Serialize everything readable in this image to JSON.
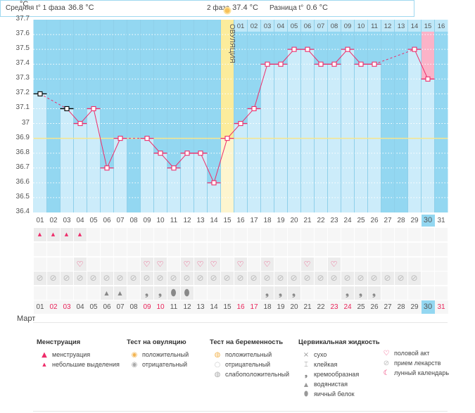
{
  "header": {
    "phase1_label": "Средняя t° 1 фаза",
    "phase1_value": "36.8 °C",
    "phase2_label": "2 фаза",
    "phase2_value": "37.4 °C",
    "diff_label": "Разница t°",
    "diff_value": "0.6 °C"
  },
  "ovulation_label": "ОВУЛЯЦИЯ",
  "month": "Март",
  "colors": {
    "dark": "#93d7f1",
    "light": "#ccecfa",
    "line": "#ee2c6a",
    "coverline": "#f7e58c",
    "ovulation": "#fcec9c",
    "pink": "#fbb3c8",
    "red_text": "#e8245a"
  },
  "chart_data": {
    "type": "line",
    "ylabel": "°C",
    "ylim": [
      36.4,
      37.7
    ],
    "yticks": [
      "37.7",
      "37.6",
      "37.5",
      "37.4",
      "37.3",
      "37.2",
      "37.1",
      "37",
      "36.9",
      "36.8",
      "36.7",
      "36.6",
      "36.5",
      "36.4"
    ],
    "coverline": 36.9,
    "ovulation_day": 15,
    "days": [
      "01",
      "02",
      "03",
      "04",
      "05",
      "06",
      "07",
      "08",
      "09",
      "10",
      "11",
      "12",
      "13",
      "14",
      "15",
      "16",
      "17",
      "18",
      "19",
      "20",
      "21",
      "22",
      "23",
      "24",
      "25",
      "26",
      "27",
      "28",
      "29",
      "30",
      "31"
    ],
    "temps": [
      37.2,
      null,
      37.1,
      37.0,
      37.1,
      36.7,
      36.9,
      null,
      36.9,
      36.8,
      36.7,
      36.8,
      36.8,
      36.6,
      36.9,
      37.0,
      37.1,
      37.4,
      37.4,
      37.5,
      37.5,
      37.4,
      37.4,
      37.5,
      37.4,
      37.4,
      null,
      null,
      37.5,
      37.3,
      null
    ],
    "phase2_days": [
      "01",
      "02",
      "03",
      "04",
      "05",
      "06",
      "07",
      "08",
      "09",
      "10",
      "11",
      "12",
      "13",
      "14",
      "15",
      "16"
    ],
    "today": 30
  },
  "rows": {
    "menstruation": [
      1,
      2,
      3,
      4
    ],
    "intercourse": [
      4,
      9,
      10,
      12,
      13,
      14,
      16,
      18,
      21,
      23
    ],
    "medication": [
      1,
      2,
      3,
      4,
      5,
      6,
      7,
      8,
      9,
      10,
      11,
      12,
      13,
      14,
      15,
      16,
      17,
      18,
      19,
      20,
      21,
      22,
      23,
      24,
      25,
      26,
      27,
      28,
      29
    ],
    "fluid": {
      "6": "watery",
      "7": "watery",
      "9": "creamy",
      "10": "creamy",
      "11": "egg",
      "12": "egg",
      "18": "creamy",
      "19": "creamy",
      "20": "creamy",
      "24": "creamy",
      "25": "creamy",
      "26": "creamy"
    },
    "weekend_days": [
      2,
      3,
      9,
      10,
      16,
      17,
      23,
      24,
      31
    ]
  },
  "legend": {
    "menstruation": {
      "title": "Менструация",
      "items": [
        "менструация",
        "небольшие выделения"
      ]
    },
    "ovulation_test": {
      "title": "Тест на овуляцию",
      "items": [
        "положительный",
        "отрицательный"
      ]
    },
    "pregnancy_test": {
      "title": "Тест на беременность",
      "items": [
        "положительный",
        "отрицательный",
        "слабоположительный"
      ]
    },
    "fluid": {
      "title": "Цервикальная жидкость",
      "items": [
        "сухо",
        "клейкая",
        "кремообразная",
        "водянистая",
        "яичный белок"
      ]
    },
    "other": {
      "items": [
        "половой акт",
        "прием лекарств",
        "лунный календарь"
      ]
    }
  }
}
